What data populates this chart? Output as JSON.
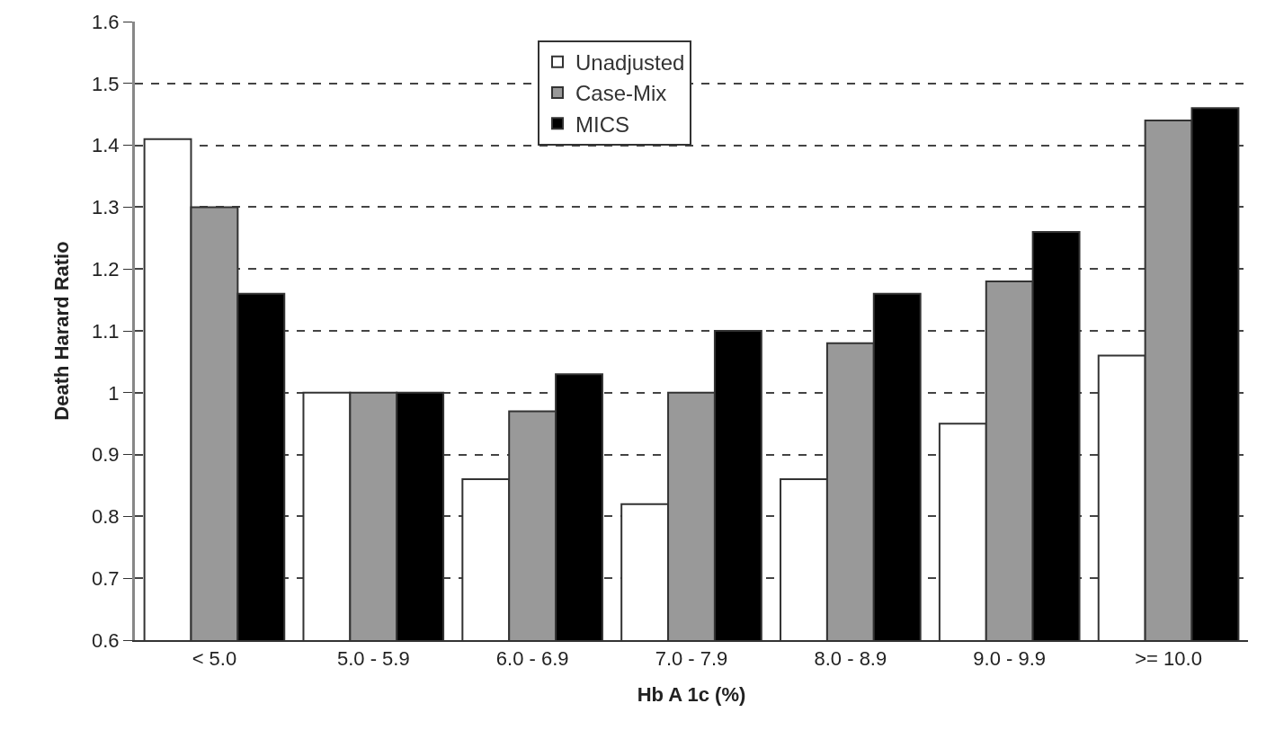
{
  "chart_data": {
    "type": "bar",
    "xlabel": "Hb A 1c (%)",
    "ylabel": "Death Harard Ratio",
    "categories": [
      "< 5.0",
      "5.0 - 5.9",
      "6.0 - 6.9",
      "7.0 - 7.9",
      "8.0 - 8.9",
      "9.0 - 9.9",
      ">= 10.0"
    ],
    "series": [
      {
        "name": "Unadjusted",
        "color": "#ffffff",
        "values": [
          1.41,
          1.0,
          0.86,
          0.82,
          0.86,
          0.95,
          1.06
        ]
      },
      {
        "name": "Case-Mix",
        "color": "#999999",
        "values": [
          1.3,
          1.0,
          0.97,
          1.0,
          1.08,
          1.18,
          1.44
        ]
      },
      {
        "name": "MICS",
        "color": "#000000",
        "values": [
          1.16,
          1.0,
          1.03,
          1.1,
          1.16,
          1.26,
          1.46
        ]
      }
    ],
    "ylim": [
      0.6,
      1.6
    ],
    "yticks": [
      {
        "value": 0.6,
        "label": "0.6"
      },
      {
        "value": 0.7,
        "label": "0.7"
      },
      {
        "value": 0.8,
        "label": "0.8"
      },
      {
        "value": 0.9,
        "label": "0.9"
      },
      1,
      {
        "value": 1.1,
        "label": "1.1"
      },
      {
        "value": 1.2,
        "label": "1.2"
      },
      {
        "value": 1.3,
        "label": "1.3"
      },
      {
        "value": 1.4,
        "label": "1.4"
      },
      {
        "value": 1.5,
        "label": "1.5"
      },
      {
        "value": 1.6,
        "label": "1.6"
      }
    ],
    "grid": "y",
    "line_style": "dashed",
    "legend": "top"
  }
}
